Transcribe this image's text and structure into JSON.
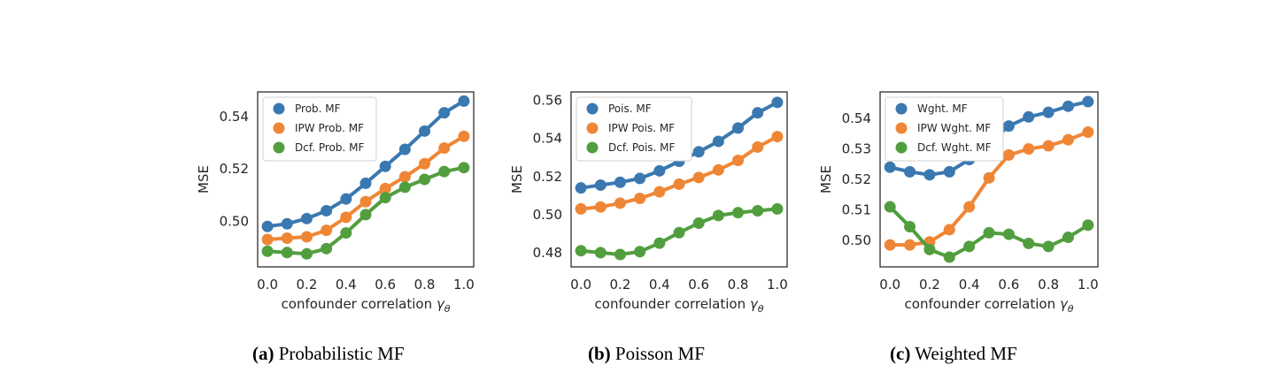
{
  "chart_data": [
    {
      "type": "line",
      "caption_tag": "(a)",
      "caption_text": "Probabilistic MF",
      "xlabel": "confounder correlation",
      "xlabel_symbol": "γ",
      "xlabel_sub": "θ",
      "ylabel": "MSE",
      "xlim": [
        -0.05,
        1.05
      ],
      "ylim": [
        0.4825,
        0.5495
      ],
      "xticks": [
        0.0,
        0.2,
        0.4,
        0.6,
        0.8,
        1.0
      ],
      "xtick_labels": [
        "0.0",
        "0.2",
        "0.4",
        "0.6",
        "0.8",
        "1.0"
      ],
      "yticks": [
        0.5,
        0.52,
        0.54
      ],
      "ytick_labels": [
        "0.50",
        "0.52",
        "0.54"
      ],
      "grid": false,
      "legend_position": "top-left",
      "x": [
        0.0,
        0.1,
        0.2,
        0.3,
        0.4,
        0.5,
        0.6,
        0.7,
        0.8,
        0.9,
        1.0
      ],
      "series": [
        {
          "name": "Prob. MF",
          "color": "#3a78b0",
          "values": [
            0.498,
            0.499,
            0.501,
            0.504,
            0.5085,
            0.5145,
            0.521,
            0.5275,
            0.5345,
            0.5415,
            0.546
          ]
        },
        {
          "name": "IPW Prob. MF",
          "color": "#ef8636",
          "values": [
            0.493,
            0.4935,
            0.494,
            0.4965,
            0.5015,
            0.5075,
            0.5125,
            0.517,
            0.522,
            0.528,
            0.5325
          ]
        },
        {
          "name": "Dcf. Prob. MF",
          "color": "#519e3e",
          "values": [
            0.4885,
            0.488,
            0.4875,
            0.4895,
            0.4955,
            0.5025,
            0.509,
            0.513,
            0.516,
            0.519,
            0.5205
          ]
        }
      ]
    },
    {
      "type": "line",
      "caption_tag": "(b)",
      "caption_text": "Poisson MF",
      "xlabel": "confounder correlation",
      "xlabel_symbol": "γ",
      "xlabel_sub": "θ",
      "ylabel": "MSE",
      "xlim": [
        -0.05,
        1.05
      ],
      "ylim": [
        0.4725,
        0.5645
      ],
      "xticks": [
        0.0,
        0.2,
        0.4,
        0.6,
        0.8,
        1.0
      ],
      "xtick_labels": [
        "0.0",
        "0.2",
        "0.4",
        "0.6",
        "0.8",
        "1.0"
      ],
      "yticks": [
        0.48,
        0.5,
        0.52,
        0.54,
        0.56
      ],
      "ytick_labels": [
        "0.48",
        "0.50",
        "0.52",
        "0.54",
        "0.56"
      ],
      "grid": false,
      "legend_position": "top-left",
      "x": [
        0.0,
        0.1,
        0.2,
        0.3,
        0.4,
        0.5,
        0.6,
        0.7,
        0.8,
        0.9,
        1.0
      ],
      "series": [
        {
          "name": "Pois. MF",
          "color": "#3a78b0",
          "values": [
            0.514,
            0.5155,
            0.517,
            0.519,
            0.523,
            0.528,
            0.533,
            0.5385,
            0.5455,
            0.5535,
            0.559
          ]
        },
        {
          "name": "IPW Pois. MF",
          "color": "#ef8636",
          "values": [
            0.503,
            0.504,
            0.506,
            0.5085,
            0.512,
            0.516,
            0.5195,
            0.5235,
            0.5285,
            0.5355,
            0.541
          ]
        },
        {
          "name": "Dcf. Pois. MF",
          "color": "#519e3e",
          "values": [
            0.481,
            0.48,
            0.479,
            0.4805,
            0.485,
            0.4905,
            0.4955,
            0.4995,
            0.501,
            0.502,
            0.503
          ]
        }
      ]
    },
    {
      "type": "line",
      "caption_tag": "(c)",
      "caption_text": "Weighted MF",
      "xlabel": "confounder correlation",
      "xlabel_symbol": "γ",
      "xlabel_sub": "θ",
      "ylabel": "MSE",
      "xlim": [
        -0.05,
        1.05
      ],
      "ylim": [
        0.4913,
        0.5487
      ],
      "xticks": [
        0.0,
        0.2,
        0.4,
        0.6,
        0.8,
        1.0
      ],
      "xtick_labels": [
        "0.0",
        "0.2",
        "0.4",
        "0.6",
        "0.8",
        "1.0"
      ],
      "yticks": [
        0.5,
        0.51,
        0.52,
        0.53,
        0.54
      ],
      "ytick_labels": [
        "0.50",
        "0.51",
        "0.52",
        "0.53",
        "0.54"
      ],
      "grid": false,
      "legend_position": "top-left",
      "x": [
        0.0,
        0.1,
        0.2,
        0.3,
        0.4,
        0.5,
        0.6,
        0.7,
        0.8,
        0.9,
        1.0
      ],
      "series": [
        {
          "name": "Wght. MF",
          "color": "#3a78b0",
          "values": [
            0.524,
            0.5225,
            0.5215,
            0.5225,
            0.5265,
            0.532,
            0.5375,
            0.5405,
            0.542,
            0.544,
            0.5455
          ]
        },
        {
          "name": "IPW Wght. MF",
          "color": "#ef8636",
          "values": [
            0.4985,
            0.4985,
            0.4995,
            0.5035,
            0.511,
            0.5205,
            0.528,
            0.53,
            0.531,
            0.533,
            0.5355
          ]
        },
        {
          "name": "Dcf. Wght. MF",
          "color": "#519e3e",
          "values": [
            0.511,
            0.5045,
            0.497,
            0.4945,
            0.498,
            0.5025,
            0.502,
            0.499,
            0.498,
            0.501,
            0.505
          ]
        }
      ]
    }
  ]
}
